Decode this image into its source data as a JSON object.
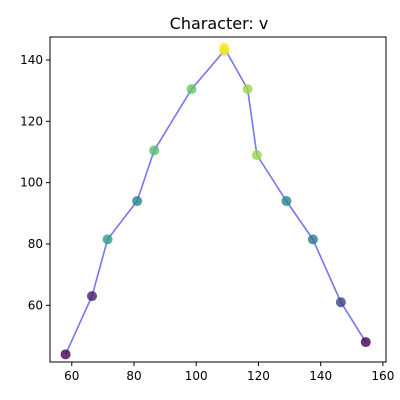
{
  "chart_data": {
    "type": "line",
    "title": "Character: v",
    "xlabel": "",
    "ylabel": "",
    "xlim": [
      53,
      161
    ],
    "ylim": [
      41.5,
      147.5
    ],
    "xticks": [
      60,
      80,
      100,
      120,
      140,
      160
    ],
    "yticks": [
      60,
      80,
      100,
      120,
      140
    ],
    "grid": false,
    "line_color": "#7777ee",
    "colormap": "viridis",
    "points": [
      {
        "x": 58,
        "y": 44,
        "c": 0.0
      },
      {
        "x": 66.5,
        "y": 63,
        "c": 0.1
      },
      {
        "x": 71.5,
        "y": 81.5,
        "c": 0.55
      },
      {
        "x": 81,
        "y": 94,
        "c": 0.45
      },
      {
        "x": 86.5,
        "y": 110.5,
        "c": 0.7
      },
      {
        "x": 98.5,
        "y": 130.5,
        "c": 0.75
      },
      {
        "x": 109,
        "y": 143,
        "c": 0.95
      },
      {
        "x": 109,
        "y": 144,
        "c": 1.0
      },
      {
        "x": 116.5,
        "y": 130.5,
        "c": 0.85
      },
      {
        "x": 119.5,
        "y": 109,
        "c": 0.85
      },
      {
        "x": 129,
        "y": 94,
        "c": 0.45
      },
      {
        "x": 137.5,
        "y": 81.5,
        "c": 0.4
      },
      {
        "x": 146.5,
        "y": 61,
        "c": 0.2
      },
      {
        "x": 154.5,
        "y": 48,
        "c": 0.0
      }
    ]
  }
}
